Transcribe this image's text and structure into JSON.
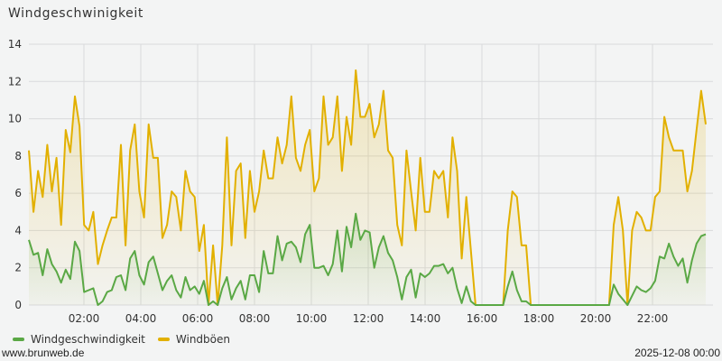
{
  "title": "Windgeschwinigkeit",
  "legend": [
    {
      "label": "Windgeschwindigkeit",
      "color": "#5aa845"
    },
    {
      "label": "Windböen",
      "color": "#e2b000"
    }
  ],
  "footer": {
    "site": "www.brunweb.de",
    "timestamp": "2025-12-08 00:00"
  },
  "chart_data": {
    "type": "line",
    "title": "Windgeschwinigkeit",
    "xlabel": "",
    "ylabel": "",
    "ylim": [
      0,
      14
    ],
    "yticks": [
      0,
      2,
      4,
      6,
      8,
      10,
      12,
      14
    ],
    "xticks": [
      "02:00",
      "04:00",
      "06:00",
      "08:00",
      "10:00",
      "12:00",
      "14:00",
      "16:00",
      "18:00",
      "20:00",
      "22:00"
    ],
    "grid": true,
    "legend_position": "bottom-left",
    "x_interval_minutes": 10,
    "x_start": "00:10",
    "series": [
      {
        "name": "Windgeschwindigkeit",
        "color": "#5aa845",
        "values": [
          3.5,
          2.7,
          2.8,
          1.6,
          3.0,
          2.2,
          1.8,
          1.2,
          1.9,
          1.4,
          3.4,
          2.9,
          0.7,
          0.8,
          0.9,
          0.0,
          0.2,
          0.7,
          0.8,
          1.5,
          1.6,
          0.8,
          2.5,
          2.9,
          1.6,
          1.1,
          2.3,
          2.6,
          1.7,
          0.8,
          1.3,
          1.6,
          0.8,
          0.4,
          1.5,
          0.8,
          1.0,
          0.6,
          1.3,
          0.0,
          0.2,
          0.0,
          0.9,
          1.5,
          0.3,
          0.9,
          1.3,
          0.3,
          1.6,
          1.6,
          0.7,
          2.9,
          1.7,
          1.7,
          3.7,
          2.4,
          3.3,
          3.4,
          3.1,
          2.3,
          3.8,
          4.3,
          2.0,
          2.0,
          2.1,
          1.6,
          2.2,
          4.0,
          1.8,
          4.2,
          3.1,
          4.9,
          3.5,
          4.0,
          3.9,
          2.0,
          3.1,
          3.7,
          2.8,
          2.4,
          1.5,
          0.3,
          1.5,
          1.9,
          0.4,
          1.7,
          1.5,
          1.7,
          2.1,
          2.1,
          2.2,
          1.7,
          2.0,
          0.9,
          0.1,
          1.0,
          0.2,
          0.0,
          0.0,
          0.0,
          0.0,
          0.0,
          0.0,
          0.0,
          1.0,
          1.8,
          0.8,
          0.2,
          0.2,
          0.0,
          0.0,
          0.0,
          0.0,
          0.0,
          0.0,
          0.0,
          0.0,
          0.0,
          0.0,
          0.0,
          0.0,
          0.0,
          0.0,
          0.0,
          0.0,
          0.0,
          0.0,
          1.1,
          0.6,
          0.3,
          0.0,
          0.5,
          1.0,
          0.8,
          0.7,
          0.9,
          1.3,
          2.6,
          2.5,
          3.3,
          2.6,
          2.1,
          2.5,
          1.2,
          2.4,
          3.3,
          3.7,
          3.8
        ]
      },
      {
        "name": "Windböen",
        "color": "#e2b000",
        "values": [
          8.3,
          5.0,
          7.2,
          5.8,
          8.6,
          6.1,
          7.9,
          4.3,
          9.4,
          8.2,
          11.2,
          9.6,
          4.3,
          4.0,
          5.0,
          2.2,
          3.2,
          4.0,
          4.7,
          4.7,
          8.6,
          3.2,
          8.3,
          9.7,
          6.1,
          4.7,
          9.7,
          7.9,
          7.9,
          3.6,
          4.3,
          6.1,
          5.8,
          4.0,
          7.2,
          6.1,
          5.8,
          2.9,
          4.3,
          0.0,
          3.2,
          0.0,
          3.2,
          9.0,
          3.2,
          7.2,
          7.6,
          3.6,
          7.2,
          5.0,
          6.1,
          8.3,
          6.8,
          6.8,
          9.0,
          7.6,
          8.6,
          11.2,
          7.9,
          7.2,
          8.6,
          9.4,
          6.1,
          6.8,
          11.2,
          8.6,
          9.0,
          11.2,
          7.2,
          10.1,
          8.6,
          12.6,
          10.1,
          10.1,
          10.8,
          9.0,
          9.7,
          11.5,
          8.3,
          7.9,
          4.3,
          3.2,
          8.3,
          6.1,
          4.0,
          7.9,
          5.0,
          5.0,
          7.2,
          6.8,
          7.2,
          4.7,
          9.0,
          7.2,
          2.5,
          5.8,
          2.9,
          0.0,
          0.0,
          0.0,
          0.0,
          0.0,
          0.0,
          0.0,
          4.0,
          6.1,
          5.8,
          3.2,
          3.2,
          0.0,
          0.0,
          0.0,
          0.0,
          0.0,
          0.0,
          0.0,
          0.0,
          0.0,
          0.0,
          0.0,
          0.0,
          0.0,
          0.0,
          0.0,
          0.0,
          0.0,
          0.0,
          4.3,
          5.8,
          4.0,
          0.0,
          4.0,
          5.0,
          4.7,
          4.0,
          4.0,
          5.8,
          6.1,
          10.1,
          9.0,
          8.3,
          8.3,
          8.3,
          6.1,
          7.2,
          9.4,
          11.5,
          9.7
        ]
      }
    ]
  }
}
